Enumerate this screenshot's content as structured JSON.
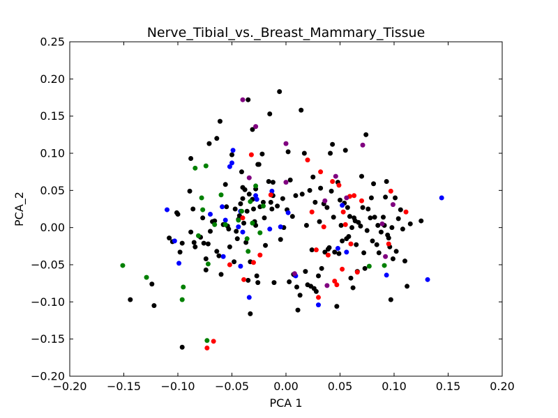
{
  "chart_data": {
    "type": "scatter",
    "title": "Nerve_Tibial_vs._Breast_Mammary_Tissue",
    "xlabel": "PCA 1",
    "ylabel": "PCA_2",
    "xlim": [
      -0.2,
      0.2
    ],
    "ylim": [
      -0.2,
      0.25
    ],
    "x_ticks": [
      -0.2,
      -0.15,
      -0.1,
      -0.05,
      0.0,
      0.05,
      0.1,
      0.15,
      0.2
    ],
    "x_tick_labels": [
      "−0.20",
      "−0.15",
      "−0.10",
      "−0.05",
      "0.00",
      "0.05",
      "0.10",
      "0.15",
      "0.20"
    ],
    "y_ticks": [
      -0.2,
      -0.15,
      -0.1,
      -0.05,
      0.0,
      0.05,
      0.1,
      0.15,
      0.2,
      0.25
    ],
    "y_tick_labels": [
      "−0.20",
      "−0.15",
      "−0.10",
      "−0.05",
      "0.00",
      "0.05",
      "0.10",
      "0.15",
      "0.20",
      "0.25"
    ],
    "grid": false,
    "legend": false,
    "series": [
      {
        "color": "#000000",
        "points": [
          [
            -0.144,
            -0.097
          ],
          [
            -0.124,
            -0.076
          ],
          [
            -0.122,
            -0.105
          ],
          [
            -0.108,
            -0.014
          ],
          [
            -0.105,
            -0.019
          ],
          [
            -0.101,
            0.02
          ],
          [
            -0.1,
            0.018
          ],
          [
            -0.098,
            -0.033
          ],
          [
            -0.096,
            -0.021
          ],
          [
            -0.096,
            -0.161
          ],
          [
            -0.088,
            0.093
          ],
          [
            -0.089,
            0.049
          ],
          [
            -0.088,
            -0.006
          ],
          [
            -0.086,
            0.025
          ],
          [
            -0.085,
            -0.02
          ],
          [
            -0.084,
            -0.026
          ],
          [
            -0.079,
            -0.013
          ],
          [
            -0.077,
            0.013
          ],
          [
            -0.076,
            -0.021
          ],
          [
            -0.074,
            -0.057
          ],
          [
            -0.074,
            -0.042
          ],
          [
            -0.071,
            0.113
          ],
          [
            -0.072,
            -0.022
          ],
          [
            -0.07,
            -0.005
          ],
          [
            -0.068,
            0.008
          ],
          [
            -0.066,
            0.009
          ],
          [
            -0.064,
            0.12
          ],
          [
            -0.064,
            -0.032
          ],
          [
            -0.062,
            -0.038
          ],
          [
            -0.061,
            0.143
          ],
          [
            -0.06,
            -0.063
          ],
          [
            -0.058,
            0.004
          ],
          [
            -0.056,
            0.058
          ],
          [
            -0.055,
            0.028
          ],
          [
            -0.054,
            0.002
          ],
          [
            -0.053,
            -0.002
          ],
          [
            -0.052,
            -0.026
          ],
          [
            -0.05,
            0.098
          ],
          [
            -0.048,
            -0.046
          ],
          [
            -0.047,
            0.025
          ],
          [
            -0.046,
            -0.005
          ],
          [
            -0.045,
            -0.015
          ],
          [
            -0.044,
            0.011
          ],
          [
            -0.043,
            0.016
          ],
          [
            -0.042,
            0.032
          ],
          [
            -0.041,
            0.075
          ],
          [
            -0.04,
            0.054
          ],
          [
            -0.04,
            0.039
          ],
          [
            -0.039,
            0.006
          ],
          [
            -0.038,
            0.051
          ],
          [
            -0.037,
            -0.02
          ],
          [
            -0.036,
            0.022
          ],
          [
            -0.035,
            -0.071
          ],
          [
            -0.035,
            0.172
          ],
          [
            -0.034,
            0.045
          ],
          [
            -0.033,
            -0.046
          ],
          [
            -0.033,
            -0.116
          ],
          [
            -0.031,
            0.132
          ],
          [
            -0.031,
            0.038
          ],
          [
            -0.03,
            0.025
          ],
          [
            -0.029,
            0.008
          ],
          [
            -0.028,
            0.003
          ],
          [
            -0.028,
            0.052
          ],
          [
            -0.027,
            -0.065
          ],
          [
            -0.026,
            -0.074
          ],
          [
            -0.026,
            0.085
          ],
          [
            -0.025,
            0.085
          ],
          [
            -0.024,
            0.028
          ],
          [
            -0.022,
            0.099
          ],
          [
            -0.021,
            0.034
          ],
          [
            -0.02,
            0.013
          ],
          [
            -0.019,
            -0.024
          ],
          [
            -0.016,
            0.062
          ],
          [
            -0.015,
            0.153
          ],
          [
            -0.014,
            0.034
          ],
          [
            -0.013,
            0.025
          ],
          [
            -0.012,
            0.061
          ],
          [
            -0.012,
            0.043
          ],
          [
            -0.011,
            -0.074
          ],
          [
            -0.008,
            0.029
          ],
          [
            -0.006,
            0.183
          ],
          [
            -0.005,
            -0.016
          ],
          [
            -0.003,
            0.039
          ],
          [
            -0.002,
            0.0
          ],
          [
            0.001,
            0.024
          ],
          [
            0.002,
            0.102
          ],
          [
            0.003,
            -0.073
          ],
          [
            0.004,
            0.064
          ],
          [
            0.006,
            0.015
          ],
          [
            0.007,
            -0.063
          ],
          [
            0.008,
            -0.064
          ],
          [
            0.009,
            0.043
          ],
          [
            0.01,
            -0.08
          ],
          [
            0.011,
            -0.111
          ],
          [
            0.013,
            -0.091
          ],
          [
            0.014,
            0.158
          ],
          [
            0.015,
            0.045
          ],
          [
            0.017,
            0.1
          ],
          [
            0.018,
            -0.059
          ],
          [
            0.019,
            0.003
          ],
          [
            0.02,
            -0.077
          ],
          [
            0.022,
            0.05
          ],
          [
            0.023,
            -0.079
          ],
          [
            0.024,
            -0.03
          ],
          [
            0.025,
            0.068
          ],
          [
            0.026,
            -0.082
          ],
          [
            0.027,
            0.034
          ],
          [
            0.028,
            -0.086
          ],
          [
            0.03,
            -0.065
          ],
          [
            0.031,
            0.008
          ],
          [
            0.032,
            0.053
          ],
          [
            0.033,
            -0.055
          ],
          [
            0.035,
            0.032
          ],
          [
            0.036,
            -0.033
          ],
          [
            0.038,
            0.027
          ],
          [
            0.039,
            -0.029
          ],
          [
            0.04,
            -0.027
          ],
          [
            0.041,
            0.1
          ],
          [
            0.042,
            0.049
          ],
          [
            0.043,
            0.112
          ],
          [
            0.044,
            0.014
          ],
          [
            0.045,
            -0.033
          ],
          [
            0.047,
            -0.106
          ],
          [
            0.048,
            0.061
          ],
          [
            0.049,
            -0.035
          ],
          [
            0.05,
            0.037
          ],
          [
            0.051,
            0.003
          ],
          [
            0.052,
            -0.018
          ],
          [
            0.054,
            0.033
          ],
          [
            0.055,
            0.104
          ],
          [
            0.056,
            -0.015
          ],
          [
            0.057,
            0.027
          ],
          [
            0.058,
            -0.012
          ],
          [
            0.059,
            0.015
          ],
          [
            0.06,
            -0.068
          ],
          [
            0.061,
            0.0
          ],
          [
            0.062,
            -0.081
          ],
          [
            0.063,
            0.013
          ],
          [
            0.064,
            0.009
          ],
          [
            0.065,
            -0.023
          ],
          [
            0.066,
            -0.059
          ],
          [
            0.067,
            0.007
          ],
          [
            0.069,
            0.002
          ],
          [
            0.07,
            0.069
          ],
          [
            0.071,
            0.027
          ],
          [
            0.072,
            -0.034
          ],
          [
            0.073,
            -0.055
          ],
          [
            0.074,
            0.125
          ],
          [
            0.075,
            -0.004
          ],
          [
            0.076,
            0.025
          ],
          [
            0.078,
            0.013
          ],
          [
            0.079,
            0.04
          ],
          [
            0.08,
            -0.018
          ],
          [
            0.081,
            0.059
          ],
          [
            0.082,
            0.014
          ],
          [
            0.084,
            -0.023
          ],
          [
            0.085,
            0.003
          ],
          [
            0.086,
            -0.034
          ],
          [
            0.088,
            -0.006
          ],
          [
            0.09,
            0.014
          ],
          [
            0.091,
            0.003
          ],
          [
            0.092,
            0.041
          ],
          [
            0.093,
            0.062
          ],
          [
            0.094,
            -0.01
          ],
          [
            0.095,
            -0.014
          ],
          [
            0.096,
            -0.026
          ],
          [
            0.097,
            -0.097
          ],
          [
            0.098,
            0.0
          ],
          [
            0.099,
            -0.042
          ],
          [
            0.101,
            0.04
          ],
          [
            0.102,
            -0.032
          ],
          [
            0.104,
            0.012
          ],
          [
            0.106,
            0.024
          ],
          [
            0.108,
            -0.002
          ],
          [
            0.11,
            -0.045
          ],
          [
            0.112,
            -0.079
          ],
          [
            0.115,
            0.005
          ],
          [
            0.125,
            0.009
          ]
        ]
      },
      {
        "color": "#0000ff",
        "points": [
          [
            -0.11,
            0.024
          ],
          [
            -0.103,
            -0.018
          ],
          [
            -0.099,
            -0.048
          ],
          [
            -0.07,
            0.018
          ],
          [
            -0.059,
            0.028
          ],
          [
            -0.058,
            -0.039
          ],
          [
            -0.056,
            0.01
          ],
          [
            -0.052,
            0.082
          ],
          [
            -0.05,
            0.087
          ],
          [
            -0.049,
            0.104
          ],
          [
            -0.044,
            0.001
          ],
          [
            -0.042,
            0.022
          ],
          [
            -0.042,
            -0.052
          ],
          [
            -0.04,
            -0.006
          ],
          [
            -0.034,
            -0.094
          ],
          [
            -0.028,
            0.043
          ],
          [
            -0.027,
            0.038
          ],
          [
            -0.015,
            -0.002
          ],
          [
            -0.013,
            0.049
          ],
          [
            -0.005,
            0.001
          ],
          [
            0.002,
            0.02
          ],
          [
            0.009,
            -0.065
          ],
          [
            0.03,
            -0.104
          ],
          [
            0.048,
            -0.028
          ],
          [
            0.052,
            0.03
          ],
          [
            0.056,
            -0.033
          ],
          [
            0.093,
            -0.064
          ],
          [
            0.131,
            -0.07
          ],
          [
            0.144,
            0.04
          ]
        ]
      },
      {
        "color": "#ff0000",
        "points": [
          [
            -0.073,
            -0.162
          ],
          [
            -0.067,
            -0.153
          ],
          [
            -0.052,
            -0.05
          ],
          [
            -0.04,
            0.013
          ],
          [
            -0.039,
            -0.07
          ],
          [
            -0.032,
            0.098
          ],
          [
            -0.03,
            -0.047
          ],
          [
            -0.024,
            -0.037
          ],
          [
            -0.014,
            0.044
          ],
          [
            0.02,
            0.091
          ],
          [
            0.024,
            0.021
          ],
          [
            0.028,
            -0.03
          ],
          [
            0.03,
            -0.094
          ],
          [
            0.032,
            0.075
          ],
          [
            0.035,
            0.001
          ],
          [
            0.039,
            -0.037
          ],
          [
            0.043,
            0.062
          ],
          [
            0.045,
            -0.072
          ],
          [
            0.047,
            -0.077
          ],
          [
            0.049,
            0.057
          ],
          [
            0.052,
            -0.056
          ],
          [
            0.053,
            0.021
          ],
          [
            0.055,
            0.004
          ],
          [
            0.059,
            0.042
          ],
          [
            0.06,
            -0.022
          ],
          [
            0.066,
            -0.06
          ],
          [
            0.07,
            0.036
          ],
          [
            0.095,
            -0.022
          ],
          [
            0.097,
            0.049
          ],
          [
            0.111,
            0.021
          ],
          [
            0.063,
            0.043
          ]
        ]
      },
      {
        "color": "#008000",
        "points": [
          [
            -0.151,
            -0.051
          ],
          [
            -0.129,
            -0.067
          ],
          [
            -0.095,
            -0.08
          ],
          [
            -0.096,
            -0.097
          ],
          [
            -0.084,
            0.08
          ],
          [
            -0.081,
            -0.011
          ],
          [
            -0.078,
            0.04
          ],
          [
            -0.077,
            0.024
          ],
          [
            -0.074,
            0.083
          ],
          [
            -0.072,
            -0.049
          ],
          [
            -0.066,
            0.004
          ],
          [
            -0.06,
            0.044
          ],
          [
            -0.056,
            0.004
          ],
          [
            -0.044,
            0.01
          ],
          [
            -0.041,
            0.022
          ],
          [
            -0.036,
            -0.015
          ],
          [
            -0.035,
            -0.032
          ],
          [
            -0.033,
            0.035
          ],
          [
            -0.031,
            0.006
          ],
          [
            -0.028,
            0.056
          ],
          [
            -0.024,
            -0.007
          ],
          [
            -0.021,
            0.029
          ],
          [
            0.077,
            -0.052
          ],
          [
            0.091,
            -0.051
          ],
          [
            -0.073,
            -0.152
          ]
        ]
      },
      {
        "color": "#800080",
        "points": [
          [
            -0.04,
            0.172
          ],
          [
            -0.034,
            0.067
          ],
          [
            -0.028,
            0.136
          ],
          [
            0.0,
            0.113
          ],
          [
            0.0,
            0.061
          ],
          [
            0.008,
            -0.062
          ],
          [
            0.036,
            0.036
          ],
          [
            0.038,
            -0.078
          ],
          [
            0.046,
            0.069
          ],
          [
            0.056,
            0.04
          ],
          [
            0.071,
            0.111
          ],
          [
            0.089,
            0.005
          ],
          [
            0.092,
            -0.039
          ],
          [
            0.099,
            0.031
          ]
        ]
      }
    ]
  }
}
